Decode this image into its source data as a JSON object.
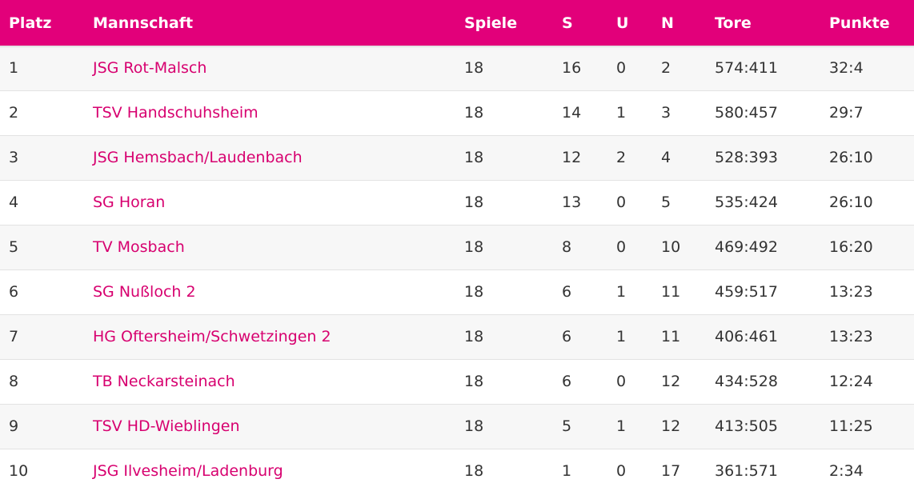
{
  "table": {
    "headers": {
      "platz": "Platz",
      "mannschaft": "Mannschaft",
      "spiele": "Spiele",
      "s": "S",
      "u": "U",
      "n": "N",
      "tore": "Tore",
      "punkte": "Punkte"
    },
    "rows": [
      {
        "platz": "1",
        "team": "JSG Rot-Malsch",
        "spiele": "18",
        "s": "16",
        "u": "0",
        "n": "2",
        "tore": "574:411",
        "punkte": "32:4"
      },
      {
        "platz": "2",
        "team": "TSV Handschuhsheim",
        "spiele": "18",
        "s": "14",
        "u": "1",
        "n": "3",
        "tore": "580:457",
        "punkte": "29:7"
      },
      {
        "platz": "3",
        "team": "JSG Hemsbach/Laudenbach",
        "spiele": "18",
        "s": "12",
        "u": "2",
        "n": "4",
        "tore": "528:393",
        "punkte": "26:10"
      },
      {
        "platz": "4",
        "team": "SG Horan",
        "spiele": "18",
        "s": "13",
        "u": "0",
        "n": "5",
        "tore": "535:424",
        "punkte": "26:10"
      },
      {
        "platz": "5",
        "team": "TV Mosbach",
        "spiele": "18",
        "s": "8",
        "u": "0",
        "n": "10",
        "tore": "469:492",
        "punkte": "16:20"
      },
      {
        "platz": "6",
        "team": "SG Nußloch 2",
        "spiele": "18",
        "s": "6",
        "u": "1",
        "n": "11",
        "tore": "459:517",
        "punkte": "13:23"
      },
      {
        "platz": "7",
        "team": "HG Oftersheim/Schwetzingen 2",
        "spiele": "18",
        "s": "6",
        "u": "1",
        "n": "11",
        "tore": "406:461",
        "punkte": "13:23"
      },
      {
        "platz": "8",
        "team": "TB Neckarsteinach",
        "spiele": "18",
        "s": "6",
        "u": "0",
        "n": "12",
        "tore": "434:528",
        "punkte": "12:24"
      },
      {
        "platz": "9",
        "team": "TSV HD-Wieblingen",
        "spiele": "18",
        "s": "5",
        "u": "1",
        "n": "12",
        "tore": "413:505",
        "punkte": "11:25"
      },
      {
        "platz": "10",
        "team": "JSG Ilvesheim/Ladenburg",
        "spiele": "18",
        "s": "1",
        "u": "0",
        "n": "17",
        "tore": "361:571",
        "punkte": "2:34"
      }
    ]
  },
  "colors": {
    "header_background": "#e2007a",
    "header_text": "#ffffff",
    "team_link": "#d7006f",
    "row_odd": "#f7f7f7",
    "row_even": "#ffffff",
    "text": "#333333"
  }
}
